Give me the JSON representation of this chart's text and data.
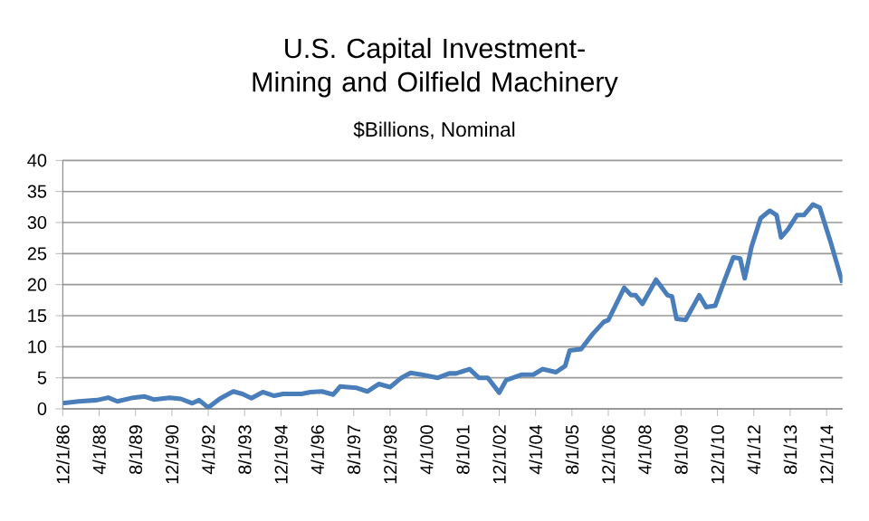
{
  "chart_data": {
    "type": "line",
    "title": "U.S. Capital Investment- Mining and Oilfield Machinery",
    "subtitle": "$Billions, Nominal",
    "x": [
      "1986-12",
      "1987-07",
      "1988-03",
      "1988-08",
      "1988-12",
      "1989-07",
      "1989-12",
      "1990-04",
      "1990-11",
      "1991-04",
      "1991-09",
      "1991-12",
      "1992-04",
      "1992-09",
      "1993-03",
      "1993-07",
      "1993-11",
      "1994-04",
      "1994-09",
      "1995-01",
      "1995-09",
      "1996-01",
      "1996-06",
      "1996-11",
      "1997-02",
      "1997-09",
      "1998-02",
      "1998-07",
      "1998-12",
      "1999-05",
      "1999-09",
      "2000-02",
      "2000-09",
      "2001-02",
      "2001-05",
      "2001-11",
      "2002-03",
      "2002-07",
      "2002-12",
      "2003-03",
      "2003-10",
      "2004-03",
      "2004-07",
      "2005-01",
      "2005-05",
      "2005-07",
      "2005-12",
      "2006-05",
      "2006-10",
      "2006-12",
      "2007-07",
      "2007-10",
      "2007-12",
      "2008-03",
      "2008-09",
      "2009-02",
      "2009-04",
      "2009-06",
      "2009-10",
      "2010-04",
      "2010-07",
      "2010-11",
      "2011-02",
      "2011-07",
      "2011-10",
      "2011-12",
      "2012-03",
      "2012-07",
      "2012-11",
      "2013-02",
      "2013-04",
      "2013-07",
      "2013-11",
      "2014-02",
      "2014-06",
      "2014-09",
      "2015-02",
      "2015-07"
    ],
    "series": [
      {
        "color": "#4a7ebb",
        "values": [
          0.9,
          1.2,
          1.4,
          1.8,
          1.2,
          1.8,
          2.0,
          1.5,
          1.8,
          1.6,
          0.9,
          1.4,
          0.2,
          1.6,
          2.8,
          2.4,
          1.7,
          2.7,
          2.1,
          2.4,
          2.4,
          2.7,
          2.8,
          2.3,
          3.6,
          3.4,
          2.8,
          4.0,
          3.5,
          5.0,
          5.8,
          5.5,
          5.0,
          5.7,
          5.7,
          6.4,
          5.0,
          5.0,
          2.6,
          4.6,
          5.5,
          5.5,
          6.4,
          5.9,
          6.9,
          9.4,
          9.6,
          12.0,
          14.0,
          14.3,
          19.5,
          18.3,
          18.3,
          16.9,
          20.8,
          18.3,
          18.1,
          14.5,
          14.3,
          18.3,
          16.4,
          16.6,
          19.6,
          24.4,
          24.2,
          21.0,
          26.1,
          30.7,
          31.9,
          31.2,
          27.6,
          28.9,
          31.2,
          31.2,
          32.9,
          32.4,
          26.6,
          20.3
        ]
      }
    ],
    "xlim": [
      "1986-12",
      "2015-07"
    ],
    "xticks": [
      {
        "value": "1986-12-01",
        "label": "12/1/86"
      },
      {
        "value": "1988-04-01",
        "label": "4/1/88"
      },
      {
        "value": "1989-08-01",
        "label": "8/1/89"
      },
      {
        "value": "1990-12-01",
        "label": "12/1/90"
      },
      {
        "value": "1992-04-01",
        "label": "4/1/92"
      },
      {
        "value": "1993-08-01",
        "label": "8/1/93"
      },
      {
        "value": "1994-12-01",
        "label": "12/1/94"
      },
      {
        "value": "1996-04-01",
        "label": "4/1/96"
      },
      {
        "value": "1997-08-01",
        "label": "8/1/97"
      },
      {
        "value": "1998-12-01",
        "label": "12/1/98"
      },
      {
        "value": "2000-04-01",
        "label": "4/1/00"
      },
      {
        "value": "2001-08-01",
        "label": "8/1/01"
      },
      {
        "value": "2002-12-01",
        "label": "12/1/02"
      },
      {
        "value": "2004-04-01",
        "label": "4/1/04"
      },
      {
        "value": "2005-08-01",
        "label": "8/1/05"
      },
      {
        "value": "2006-12-01",
        "label": "12/1/06"
      },
      {
        "value": "2008-04-01",
        "label": "4/1/08"
      },
      {
        "value": "2009-08-01",
        "label": "8/1/09"
      },
      {
        "value": "2010-12-01",
        "label": "12/1/10"
      },
      {
        "value": "2012-04-01",
        "label": "4/1/12"
      },
      {
        "value": "2013-08-01",
        "label": "8/1/13"
      },
      {
        "value": "2014-12-01",
        "label": "12/1/14"
      }
    ],
    "ylim": [
      0,
      40
    ],
    "yticks": [
      0,
      5,
      10,
      15,
      20,
      25,
      30,
      35,
      40
    ],
    "grid": "y",
    "marker": "none",
    "line_style": "solid"
  }
}
